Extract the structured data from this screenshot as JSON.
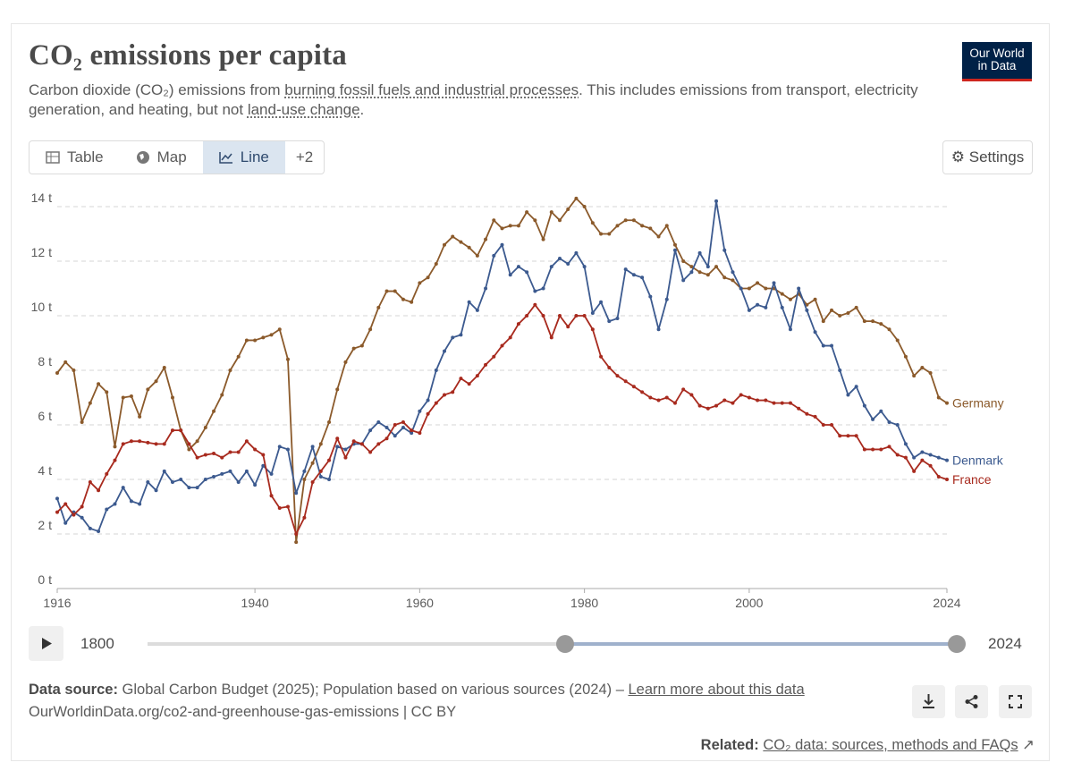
{
  "header": {
    "title": "CO₂ emissions per capita",
    "subtitle": [
      "Carbon dioxide (CO₂) emissions from ",
      "burning fossil fuels and industrial processes",
      ". This includes emissions from transport, electricity generation, and heating, but not ",
      "land-use change",
      "."
    ],
    "logo": [
      "Our World",
      "in Data"
    ]
  },
  "tabs": [
    "Table",
    "Map",
    "Line",
    "+2"
  ],
  "settings": "Settings",
  "timeline": {
    "start": "1800",
    "end": "2024"
  },
  "footer": {
    "source_label": "Data source:",
    "source": " Global Carbon Budget (2025); Population based on various sources (2024) – ",
    "learn_more": "Learn more about this data",
    "url": "OurWorldinData.org/co2-and-greenhouse-gas-emissions | CC BY",
    "related_label": "Related:",
    "related": "CO₂ data: sources, methods and FAQs"
  },
  "chart_data": {
    "type": "line",
    "grid": true,
    "x": [
      1916,
      1917,
      1918,
      1919,
      1920,
      1921,
      1922,
      1923,
      1924,
      1925,
      1926,
      1927,
      1928,
      1929,
      1930,
      1931,
      1932,
      1933,
      1934,
      1935,
      1936,
      1937,
      1938,
      1939,
      1940,
      1941,
      1942,
      1943,
      1944,
      1945,
      1946,
      1947,
      1948,
      1949,
      1950,
      1951,
      1952,
      1953,
      1954,
      1955,
      1956,
      1957,
      1958,
      1959,
      1960,
      1961,
      1962,
      1963,
      1964,
      1965,
      1966,
      1967,
      1968,
      1969,
      1970,
      1971,
      1972,
      1973,
      1974,
      1975,
      1976,
      1977,
      1978,
      1979,
      1980,
      1981,
      1982,
      1983,
      1984,
      1985,
      1986,
      1987,
      1988,
      1989,
      1990,
      1991,
      1992,
      1993,
      1994,
      1995,
      1996,
      1997,
      1998,
      1999,
      2000,
      2001,
      2002,
      2003,
      2004,
      2005,
      2006,
      2007,
      2008,
      2009,
      2010,
      2011,
      2012,
      2013,
      2014,
      2015,
      2016,
      2017,
      2018,
      2019,
      2020,
      2021,
      2022,
      2023,
      2024
    ],
    "xlim": [
      1916,
      2024
    ],
    "xticks": [
      1916,
      1940,
      1960,
      1980,
      2000,
      2024
    ],
    "ylim": [
      0,
      14
    ],
    "yticks": [
      {
        "value": 0,
        "label": "0 t"
      },
      {
        "value": 2,
        "label": "2 t"
      },
      {
        "value": 4,
        "label": "4 t"
      },
      {
        "value": 6,
        "label": "6 t"
      },
      {
        "value": 8,
        "label": "8 t"
      },
      {
        "value": 10,
        "label": "10 t"
      },
      {
        "value": 12,
        "label": "12 t"
      },
      {
        "value": 14,
        "label": "14 t"
      }
    ],
    "series": [
      {
        "name": "Germany",
        "color": "#8b5a2b",
        "values": [
          7.9,
          8.3,
          8.0,
          6.1,
          6.8,
          7.5,
          7.2,
          5.2,
          7.0,
          7.05,
          6.3,
          7.3,
          7.6,
          8.1,
          7.0,
          5.8,
          5.1,
          5.4,
          5.9,
          6.5,
          7.1,
          8.0,
          8.5,
          9.1,
          9.1,
          9.2,
          9.3,
          9.5,
          8.4,
          1.7,
          4.0,
          4.6,
          5.3,
          6.1,
          7.3,
          8.3,
          8.8,
          8.9,
          9.5,
          10.3,
          10.9,
          10.9,
          10.6,
          10.5,
          11.2,
          11.4,
          11.9,
          12.6,
          12.9,
          12.7,
          12.5,
          12.2,
          12.8,
          13.5,
          13.2,
          13.3,
          13.3,
          13.8,
          13.5,
          12.8,
          13.8,
          13.5,
          13.9,
          14.3,
          14.0,
          13.4,
          13.0,
          13.0,
          13.3,
          13.5,
          13.5,
          13.3,
          13.2,
          12.9,
          13.3,
          12.6,
          12.0,
          11.8,
          11.6,
          11.5,
          11.8,
          11.4,
          11.3,
          11.0,
          11.0,
          11.2,
          11.0,
          11.0,
          10.8,
          10.6,
          10.8,
          10.4,
          10.6,
          9.8,
          10.2,
          10.0,
          10.1,
          10.3,
          9.8,
          9.8,
          9.7,
          9.5,
          9.1,
          8.5,
          7.8,
          8.1,
          7.9,
          7.0,
          6.8
        ]
      },
      {
        "name": "Denmark",
        "color": "#3c5a8f",
        "values": [
          3.3,
          2.4,
          2.8,
          2.6,
          2.2,
          2.1,
          2.9,
          3.1,
          3.7,
          3.2,
          3.1,
          3.9,
          3.6,
          4.3,
          3.9,
          4.0,
          3.7,
          3.7,
          4.0,
          4.1,
          4.2,
          4.3,
          3.9,
          4.3,
          3.8,
          4.5,
          4.2,
          5.2,
          5.1,
          3.5,
          4.3,
          5.2,
          4.1,
          4.0,
          5.2,
          5.1,
          5.3,
          5.3,
          5.8,
          6.1,
          5.9,
          5.6,
          5.9,
          5.7,
          6.5,
          6.9,
          8.0,
          8.7,
          9.2,
          9.3,
          10.5,
          10.2,
          11.0,
          12.2,
          12.6,
          11.5,
          11.8,
          11.6,
          10.9,
          11.0,
          11.8,
          12.1,
          11.9,
          12.3,
          11.8,
          10.1,
          10.5,
          9.8,
          9.9,
          11.7,
          11.5,
          11.4,
          10.7,
          9.5,
          10.6,
          12.4,
          11.3,
          11.6,
          12.3,
          11.8,
          14.2,
          12.4,
          11.6,
          11.0,
          10.2,
          10.4,
          10.3,
          11.2,
          10.3,
          9.5,
          11.0,
          10.2,
          9.4,
          8.9,
          8.9,
          8.0,
          7.1,
          7.4,
          6.7,
          6.2,
          6.5,
          6.1,
          6.0,
          5.3,
          4.8,
          5.0,
          4.9,
          4.8,
          4.7
        ]
      },
      {
        "name": "France",
        "color": "#a82a1e",
        "values": [
          2.8,
          3.1,
          2.7,
          3.0,
          3.9,
          3.6,
          4.2,
          4.7,
          5.3,
          5.4,
          5.4,
          5.35,
          5.3,
          5.3,
          5.8,
          5.8,
          5.3,
          4.8,
          4.9,
          4.95,
          4.8,
          5.0,
          5.0,
          5.4,
          5.1,
          4.9,
          3.4,
          2.95,
          3.0,
          2.0,
          2.6,
          3.9,
          4.3,
          4.7,
          5.5,
          4.8,
          5.4,
          5.3,
          5.0,
          5.3,
          5.5,
          6.0,
          6.1,
          5.8,
          5.7,
          6.4,
          6.8,
          7.1,
          7.2,
          7.7,
          7.5,
          7.8,
          8.2,
          8.5,
          8.9,
          9.2,
          9.7,
          10.0,
          10.4,
          10.0,
          9.2,
          10.0,
          9.6,
          10.0,
          10.0,
          9.5,
          8.5,
          8.1,
          7.8,
          7.6,
          7.4,
          7.2,
          7.0,
          6.9,
          7.0,
          6.8,
          7.3,
          7.1,
          6.7,
          6.6,
          6.7,
          6.9,
          6.8,
          7.1,
          7.0,
          6.9,
          6.9,
          6.8,
          6.8,
          6.8,
          6.6,
          6.4,
          6.3,
          6.0,
          6.0,
          5.6,
          5.6,
          5.6,
          5.1,
          5.1,
          5.1,
          5.2,
          4.9,
          4.8,
          4.3,
          4.7,
          4.5,
          4.1,
          4.0
        ]
      }
    ]
  }
}
